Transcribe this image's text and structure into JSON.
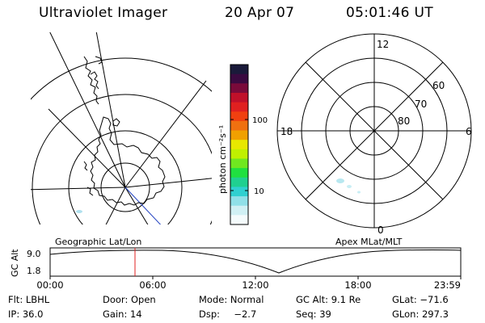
{
  "header": {
    "title": "Ultraviolet Imager",
    "date": "20 Apr 07",
    "time": "05:01:46 UT"
  },
  "colorbar": {
    "unit_label": "photon cm⁻²s⁻¹",
    "tick_labels": [
      "100",
      "10"
    ],
    "colors": [
      "#1a1a3a",
      "#3a0a40",
      "#7a0a3a",
      "#c0102a",
      "#e02020",
      "#f04010",
      "#f07010",
      "#f0a000",
      "#e8e800",
      "#c0f000",
      "#70e820",
      "#20e040",
      "#20d090",
      "#30d0d0",
      "#90e0e8",
      "#d0f0f4",
      "#f4fbfc"
    ]
  },
  "right_polar": {
    "labels": {
      "top": "12",
      "bottom": "0",
      "left": "18",
      "right": "6"
    },
    "lat_labels": [
      "80",
      "70",
      "60"
    ]
  },
  "bottom_panel": {
    "left_caption": "Geographic Lat/Lon",
    "right_caption": "Apex MLat/MLT",
    "y_axis_label": "GC Alt",
    "y_ticks": [
      "9.0",
      "1.8"
    ],
    "x_ticks": [
      "00:00",
      "06:00",
      "12:00",
      "18:00",
      "23:59"
    ],
    "marker_color": "#e02020"
  },
  "info": {
    "flt": "Flt: LBHL",
    "door": "Door: Open",
    "mode": "Mode: Normal",
    "gc_alt": "GC Alt: 9.1 Re",
    "glat": "GLat: −71.6",
    "ip": "IP: 36.0",
    "gain": "Gain: 14",
    "dsp_label": "Dsp:",
    "dsp_value": "−2.7",
    "seq": "Seq: 39",
    "glon": "GLon: 297.3"
  }
}
